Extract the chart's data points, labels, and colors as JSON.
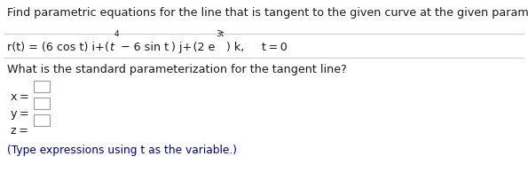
{
  "bg_color": "#ffffff",
  "text_color": "#1a1a1a",
  "blue_color": "#00008b",
  "line1": "Find parametric equations for the line that is tangent to the given curve at the given parameter value.",
  "line3_q": "What is the standard parameterization for the tangent line?",
  "note": "(Type expressions using t as the variable.)",
  "figwidth": 5.95,
  "figheight": 2.12,
  "dpi": 100,
  "fs_main": 9.2,
  "fs_super": 6.5,
  "fs_note": 8.8
}
